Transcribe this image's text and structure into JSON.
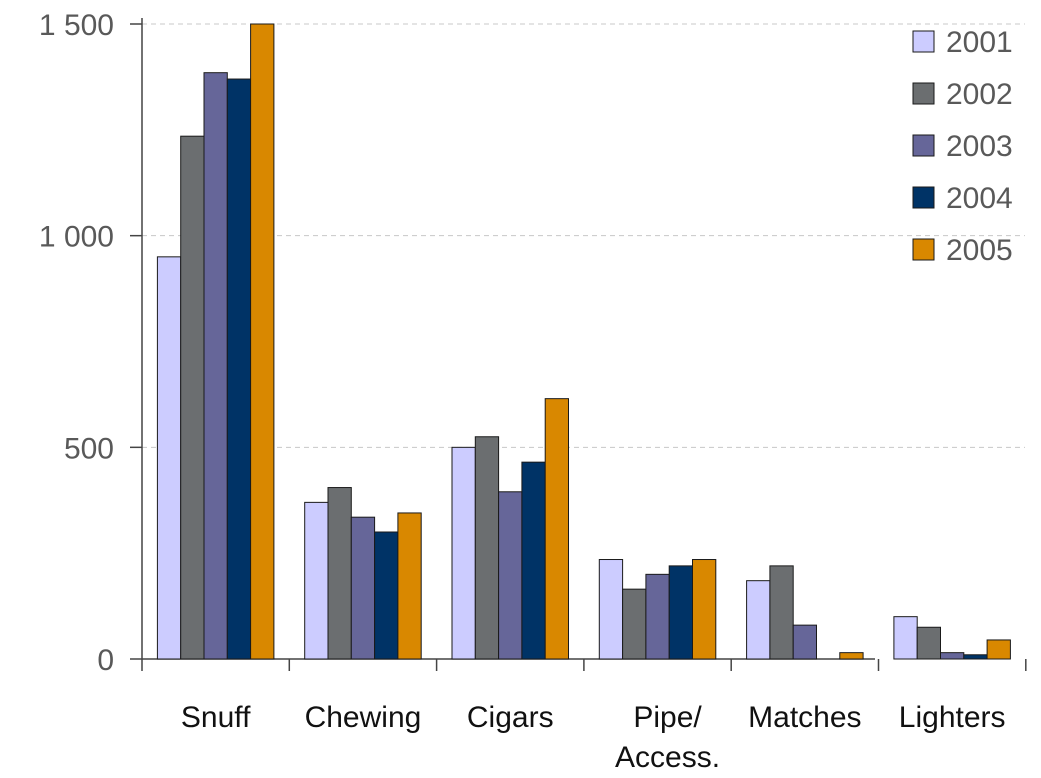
{
  "chart_data": {
    "type": "bar",
    "title": "",
    "xlabel": "",
    "ylabel": "",
    "categories": [
      "Snuff",
      "Chewing",
      "Cigars",
      "Pipe/\nAccess.",
      "Matches",
      "Lighters"
    ],
    "series": [
      {
        "name": "2001",
        "color": "#ccccff",
        "values": [
          950,
          370,
          500,
          235,
          185,
          100
        ]
      },
      {
        "name": "2002",
        "color": "#6b6e70",
        "values": [
          1235,
          405,
          525,
          165,
          220,
          75
        ]
      },
      {
        "name": "2003",
        "color": "#666699",
        "values": [
          1385,
          335,
          395,
          200,
          80,
          15
        ]
      },
      {
        "name": "2004",
        "color": "#003366",
        "values": [
          1370,
          300,
          465,
          220,
          0,
          10
        ]
      },
      {
        "name": "2005",
        "color": "#d98800",
        "values": [
          1500,
          345,
          615,
          235,
          15,
          45
        ]
      }
    ],
    "ylim": [
      0,
      1500
    ],
    "yticks": [
      0,
      500,
      1000,
      1500
    ],
    "ytick_labels": [
      "0",
      "500",
      "1 000",
      "1 500"
    ],
    "grid": true,
    "legend": "top-right"
  }
}
